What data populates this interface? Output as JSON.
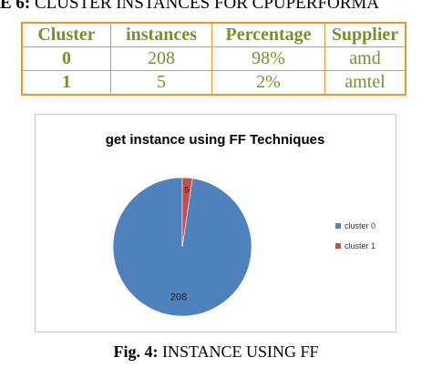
{
  "table": {
    "caption_label": "E 6:",
    "caption_text": " CLUSTER INSTANCES FOR CPUPERFORMA",
    "headers": [
      "Cluster",
      "instances",
      "Percentage",
      "Supplier"
    ],
    "rows": [
      [
        "0",
        "208",
        "98%",
        "amd"
      ],
      [
        "1",
        "5",
        "2%",
        "amtel"
      ]
    ]
  },
  "figure": {
    "caption_label": "Fig. 4:",
    "caption_text": " INSTANCE USING FF"
  },
  "chart_data": {
    "type": "pie",
    "title": "get instance using FF Techniques",
    "categories": [
      "cluster 0",
      "cluster 1"
    ],
    "values": [
      208,
      5
    ],
    "colors": [
      "#4f81bd",
      "#c0504d"
    ],
    "data_labels": [
      "208",
      "5"
    ],
    "legend_position": "right"
  }
}
